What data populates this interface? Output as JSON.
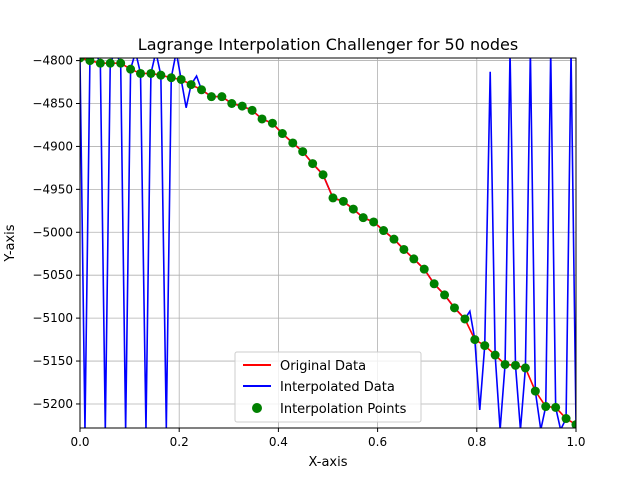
{
  "chart_data": {
    "type": "line",
    "title": "Lagrange Interpolation Challenger for 50 nodes",
    "xlabel": "X-axis",
    "ylabel": "Y-axis",
    "xlim": [
      0.0,
      1.0
    ],
    "ylim": [
      -5228,
      -4797
    ],
    "xticks": [
      0.0,
      0.2,
      0.4,
      0.6,
      0.8,
      1.0
    ],
    "xtick_labels": [
      "0.0",
      "0.2",
      "0.4",
      "0.6",
      "0.8",
      "1.0"
    ],
    "yticks": [
      -4800,
      -4850,
      -4900,
      -4950,
      -5000,
      -5050,
      -5100,
      -5150,
      -5200
    ],
    "ytick_labels": [
      "−4800",
      "−4850",
      "−4900",
      "−4950",
      "−5000",
      "−5050",
      "−5100",
      "−5150",
      "−5200"
    ],
    "grid": true,
    "legend_position": "lower center",
    "series": [
      {
        "name": "Original Data",
        "color": "#ff0000",
        "style": "line",
        "x": [
          0.0,
          0.02,
          0.041,
          0.061,
          0.082,
          0.102,
          0.122,
          0.143,
          0.163,
          0.184,
          0.204,
          0.224,
          0.245,
          0.265,
          0.286,
          0.306,
          0.327,
          0.347,
          0.367,
          0.388,
          0.408,
          0.429,
          0.449,
          0.469,
          0.49,
          0.51,
          0.531,
          0.551,
          0.571,
          0.592,
          0.612,
          0.633,
          0.653,
          0.673,
          0.694,
          0.714,
          0.735,
          0.755,
          0.776,
          0.796,
          0.816,
          0.837,
          0.857,
          0.878,
          0.898,
          0.918,
          0.939,
          0.959,
          0.98,
          1.0
        ],
        "y": [
          -4797,
          -4800,
          -4803,
          -4803,
          -4803,
          -4810,
          -4815,
          -4815,
          -4817,
          -4820,
          -4822,
          -4828,
          -4834,
          -4842,
          -4842,
          -4850,
          -4853,
          -4858,
          -4868,
          -4873,
          -4885,
          -4896,
          -4906,
          -4920,
          -4933,
          -4960,
          -4964,
          -4973,
          -4983,
          -4988,
          -4998,
          -5008,
          -5020,
          -5031,
          -5043,
          -5060,
          -5073,
          -5088,
          -5101,
          -5125,
          -5132,
          -5143,
          -5154,
          -5155,
          -5158,
          -5185,
          -5203,
          -5204,
          -5217,
          -5224
        ]
      },
      {
        "name": "Interpolated Data",
        "color": "#0000ff",
        "style": "line",
        "oscillating_x": [
          0.01,
          0.03,
          0.051,
          0.071,
          0.092,
          0.112,
          0.133,
          0.153,
          0.174,
          0.194,
          0.214,
          0.235,
          0.786,
          0.806,
          0.827,
          0.847,
          0.867,
          0.888,
          0.908,
          0.929,
          0.949,
          0.969,
          0.99
        ],
        "oscillating_y": [
          -5230,
          -4790,
          -5230,
          -4790,
          -5230,
          -4790,
          -5230,
          -4790,
          -5228,
          -4790,
          -4855,
          -4818,
          -5092,
          -5207,
          -4813,
          -5230,
          -4790,
          -5230,
          -4790,
          -5230,
          -4790,
          -5230,
          -4790
        ]
      },
      {
        "name": "Interpolation Points",
        "color": "#008000",
        "style": "scatter"
      }
    ]
  }
}
